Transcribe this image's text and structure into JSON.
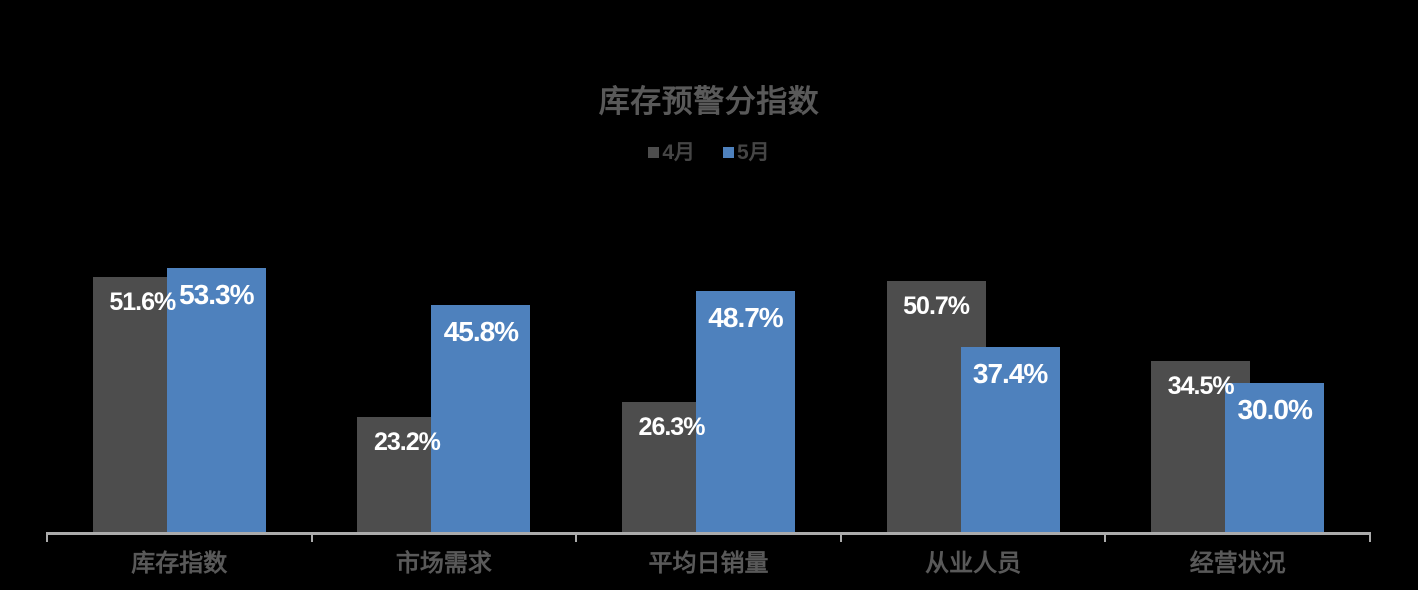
{
  "chart": {
    "title": "库存预警分指数",
    "background_color": "#000000",
    "title_color": "#595959",
    "legend_text_color": "#454545",
    "axis_color": "#ababab",
    "category_label_color": "#595959",
    "data_label_color": "#ffffff"
  },
  "chart_data": {
    "type": "bar",
    "title": "库存预警分指数",
    "categories": [
      "库存指数",
      "市场需求",
      "平均日销量",
      "从业人员",
      "经营状况"
    ],
    "series": [
      {
        "name": "4月",
        "color": "#4d4d4d",
        "values": [
          51.6,
          23.2,
          26.3,
          50.7,
          34.5
        ],
        "labels": [
          "51.6%",
          "23.2%",
          "26.3%",
          "50.7%",
          "34.5%"
        ]
      },
      {
        "name": "5月",
        "color": "#4e81bd",
        "values": [
          53.3,
          45.8,
          48.7,
          37.4,
          30.0
        ],
        "labels": [
          "53.3%",
          "45.8%",
          "48.7%",
          "37.4%",
          "30.0%"
        ]
      }
    ],
    "ylim": [
      0,
      60
    ],
    "y_axis_visible": false,
    "grid": false,
    "legend_position": "top",
    "data_labels_position": "inside-end"
  }
}
